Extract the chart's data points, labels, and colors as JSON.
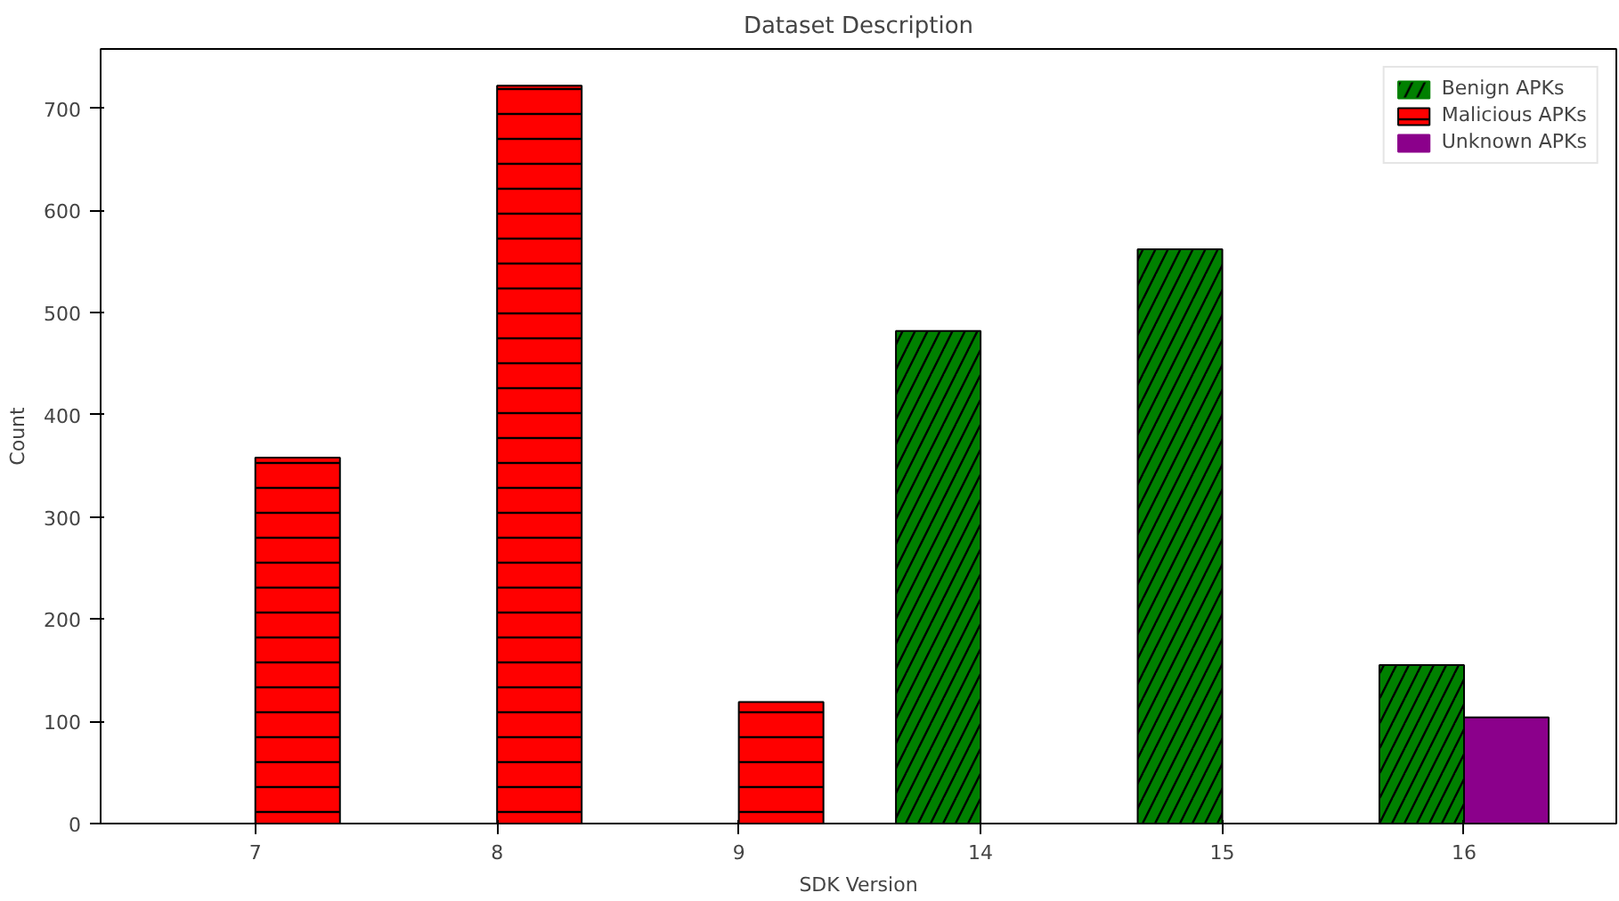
{
  "chart_data": {
    "type": "bar",
    "title": "Dataset Description",
    "xlabel": "SDK Version",
    "ylabel": "Count",
    "categories": [
      "7",
      "8",
      "9",
      "14",
      "15",
      "16"
    ],
    "series": [
      {
        "name": "Benign APKs",
        "color": "#008000",
        "values": [
          0,
          0,
          0,
          482,
          562,
          155
        ]
      },
      {
        "name": "Malicious APKs",
        "color": "#ff0000",
        "values": [
          358,
          722,
          119,
          0,
          0,
          0
        ]
      },
      {
        "name": "Unknown APKs",
        "color": "#8b008b",
        "values": [
          0,
          0,
          0,
          0,
          0,
          104
        ]
      }
    ],
    "ylim": [
      0,
      758
    ],
    "yticks": [
      0,
      100,
      200,
      300,
      400,
      500,
      600,
      700
    ],
    "grid": false,
    "legend": "top right"
  }
}
